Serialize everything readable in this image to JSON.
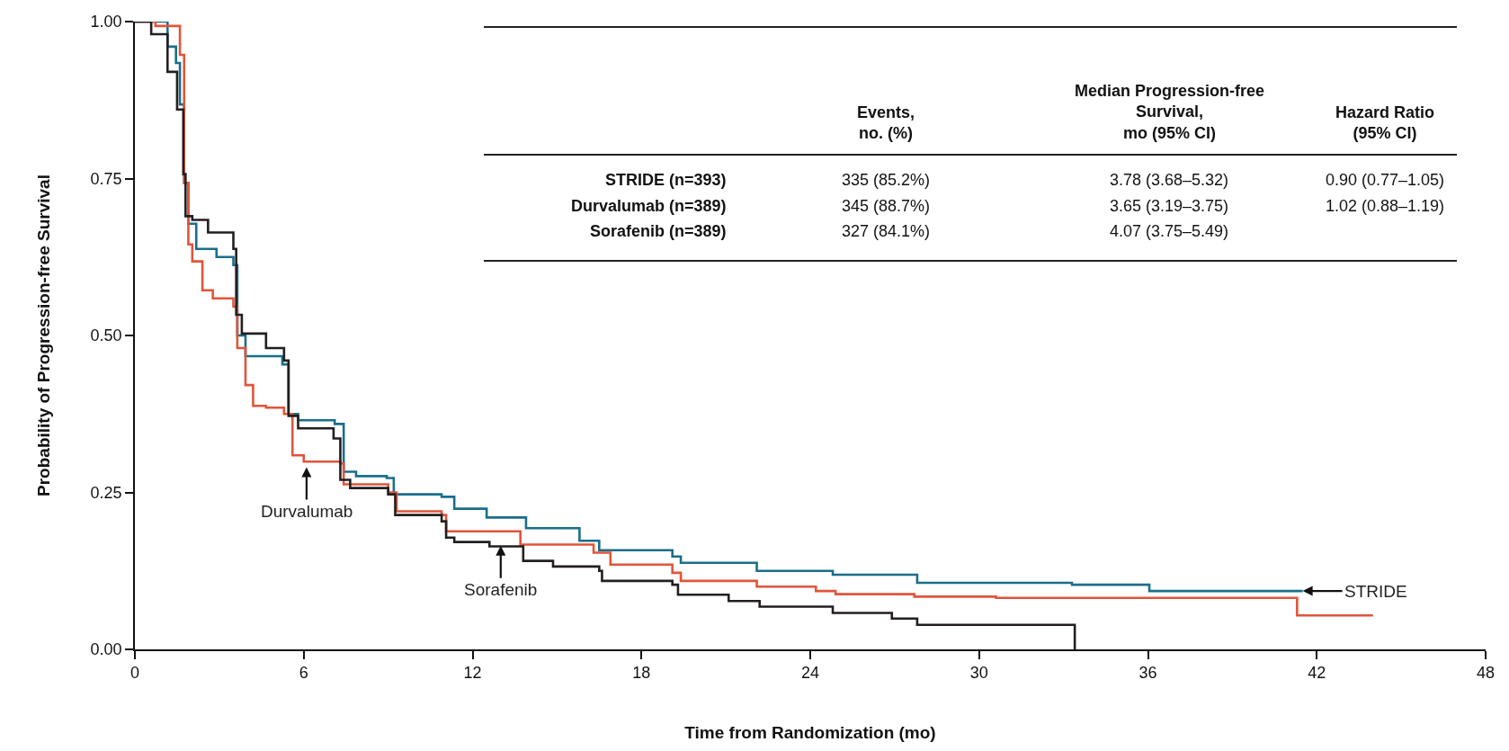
{
  "chart_data": {
    "type": "step",
    "xlabel": "Time from Randomization (mo)",
    "ylabel": "Probability of Progression-free Survival",
    "xlim": [
      0,
      48
    ],
    "xticks": [
      0,
      6,
      12,
      18,
      24,
      30,
      36,
      42,
      48
    ],
    "ylim": [
      0,
      1
    ],
    "yticks": [
      {
        "value": 0,
        "label": "0.00"
      },
      {
        "value": 0.25,
        "label": "0.25"
      },
      {
        "value": 0.5,
        "label": "0.50"
      },
      {
        "value": 0.75,
        "label": "0.75"
      },
      {
        "value": 1,
        "label": "1.00"
      }
    ],
    "grid": false,
    "marker": "none",
    "line_style": "solid",
    "series": [
      {
        "color": "#1a6e8a",
        "x": [
          0,
          1.16,
          1.46,
          1.6,
          1.75,
          1.9,
          2.18,
          2.9,
          3.5,
          3.64,
          3.93,
          5.24,
          5.46,
          5.8,
          7.1,
          7.42,
          7.86,
          8.95,
          9.2,
          10.9,
          11.35,
          12.5,
          13.9,
          15.8,
          16.5,
          19.1,
          19.4,
          22.1,
          24.8,
          27.8,
          33.3,
          36.05,
          41.5
        ],
        "values": [
          1,
          0.96,
          0.934,
          0.868,
          0.743,
          0.678,
          0.638,
          0.625,
          0.612,
          0.5,
          0.467,
          0.454,
          0.375,
          0.365,
          0.359,
          0.283,
          0.276,
          0.273,
          0.247,
          0.243,
          0.224,
          0.21,
          0.193,
          0.173,
          0.158,
          0.148,
          0.138,
          0.125,
          0.119,
          0.106,
          0.103,
          0.093,
          0.093
        ]
      },
      {
        "color": "#e0553a",
        "x": [
          0,
          0.73,
          1.6,
          1.75,
          1.9,
          2.04,
          2.4,
          2.77,
          3.5,
          3.64,
          3.93,
          4.2,
          4.66,
          5.3,
          5.6,
          6.0,
          7.3,
          7.42,
          9.0,
          9.3,
          10.9,
          11.06,
          13.7,
          16.3,
          16.9,
          19.1,
          19.4,
          22.1,
          24.2,
          24.9,
          27.7,
          30.6,
          41.3,
          44.0
        ],
        "values": [
          1,
          0.993,
          0.947,
          0.743,
          0.645,
          0.618,
          0.572,
          0.559,
          0.546,
          0.48,
          0.421,
          0.388,
          0.385,
          0.375,
          0.309,
          0.299,
          0.296,
          0.263,
          0.25,
          0.22,
          0.214,
          0.188,
          0.167,
          0.154,
          0.135,
          0.122,
          0.109,
          0.1,
          0.093,
          0.088,
          0.084,
          0.082,
          0.054,
          0.054
        ]
      },
      {
        "color": "#231f20",
        "x": [
          0,
          0.58,
          1.16,
          1.5,
          1.72,
          1.8,
          2.04,
          2.6,
          3.5,
          3.6,
          3.8,
          4.66,
          5.3,
          5.46,
          5.8,
          7.06,
          7.3,
          7.65,
          9.0,
          9.25,
          10.9,
          11.06,
          11.35,
          12.6,
          13.8,
          14.86,
          16.5,
          16.6,
          19.1,
          19.3,
          21.1,
          22.2,
          24.8,
          26.9,
          27.8,
          33.4
        ],
        "values": [
          1,
          0.98,
          0.92,
          0.86,
          0.757,
          0.69,
          0.684,
          0.664,
          0.638,
          0.533,
          0.503,
          0.48,
          0.46,
          0.372,
          0.352,
          0.336,
          0.27,
          0.257,
          0.247,
          0.214,
          0.204,
          0.178,
          0.171,
          0.164,
          0.141,
          0.132,
          0.125,
          0.109,
          0.103,
          0.087,
          0.077,
          0.068,
          0.058,
          0.049,
          0.039,
          0
        ]
      }
    ],
    "annotations": [
      {
        "text": "Durvalumab",
        "x": 6.1,
        "y": 0.29
      },
      {
        "text": "Sorafenib",
        "x": 13,
        "y": 0.165
      },
      {
        "text": "STRIDE",
        "x": 41.5,
        "y": 0.093
      },
      "Events,\nno. (%)",
      "Median Progression-free\nSurvival,\nmo (95% CI)",
      "Hazard Ratio\n(95% CI)",
      "STRIDE (n=393)",
      "335 (85.2%)",
      "3.78 (3.68–5.32)",
      "0.90 (0.77–1.05)",
      "Durvalumab (n=389)",
      "345 (88.7%)",
      "3.65 (3.19–3.75)",
      "1.02 (0.88–1.19)",
      "Sorafenib (n=389)",
      "327 (84.1%)",
      "4.07 (3.75–5.49)"
    ]
  }
}
